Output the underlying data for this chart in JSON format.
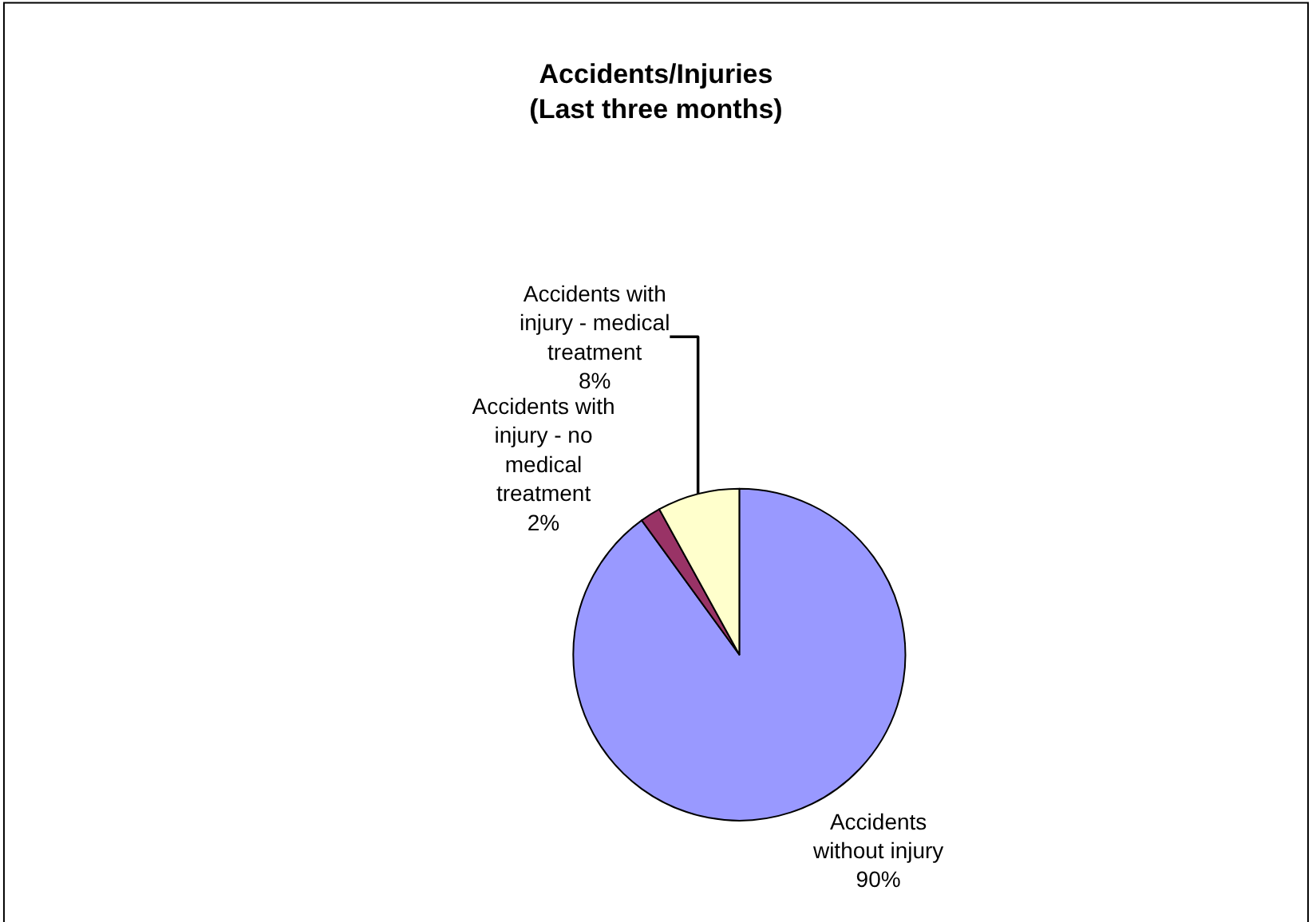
{
  "chart_data": {
    "type": "pie",
    "title": "Accidents/Injuries\n(Last three months)",
    "categories": [
      "Accidents without injury",
      "Accidents with injury - no medical treatment",
      "Accidents with injury - medical treatment"
    ],
    "values": [
      90,
      2,
      8
    ],
    "colors": [
      "#9999ff",
      "#993366",
      "#ffffcc"
    ],
    "value_labels": [
      "90%",
      "2%",
      "8%"
    ],
    "legend": false
  }
}
